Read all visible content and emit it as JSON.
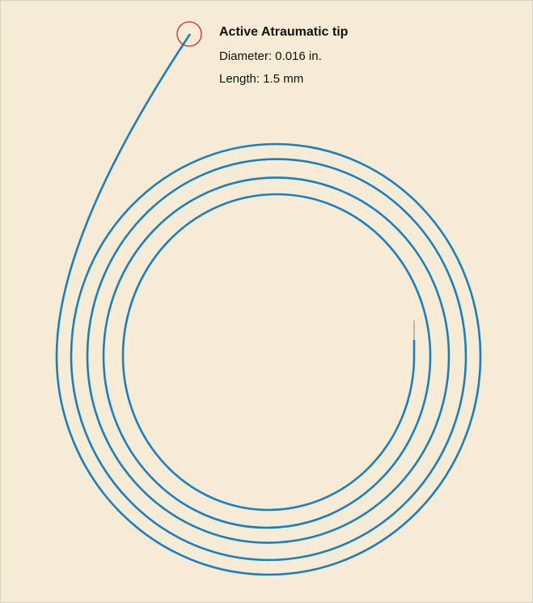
{
  "callout": {
    "title": "Active Atraumatic tip",
    "lines": [
      "Diameter: 0.016 in.",
      "Length: 1.5 mm"
    ]
  }
}
